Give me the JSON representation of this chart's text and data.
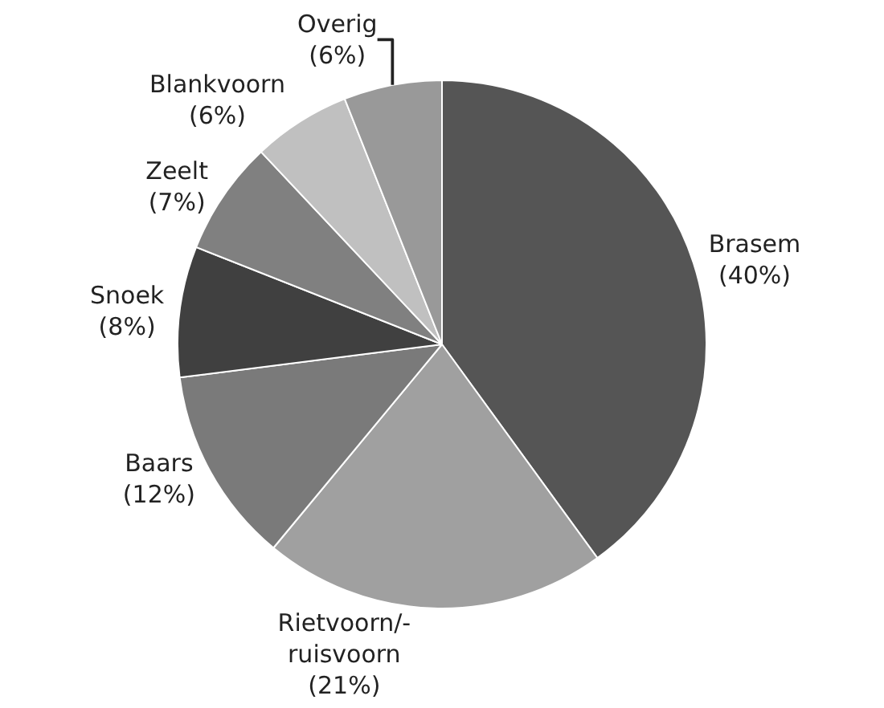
{
  "chart_data": {
    "type": "pie",
    "categories": [
      "Brasem",
      "Rietvoorn/-\nruisvoorn",
      "Baars",
      "Snoek",
      "Zeelt",
      "Blankvoorn",
      "Overig"
    ],
    "values": [
      40,
      21,
      12,
      8,
      7,
      6,
      6
    ],
    "value_labels": [
      "(40%)",
      "(21%)",
      "(12%)",
      "(8%)",
      "(7%)",
      "(6%)",
      "(6%)"
    ],
    "colors": [
      "#555555",
      "#a0a0a0",
      "#7a7a7a",
      "#404040",
      "#808080",
      "#c0c0c0",
      "#999999"
    ],
    "legend": false
  }
}
